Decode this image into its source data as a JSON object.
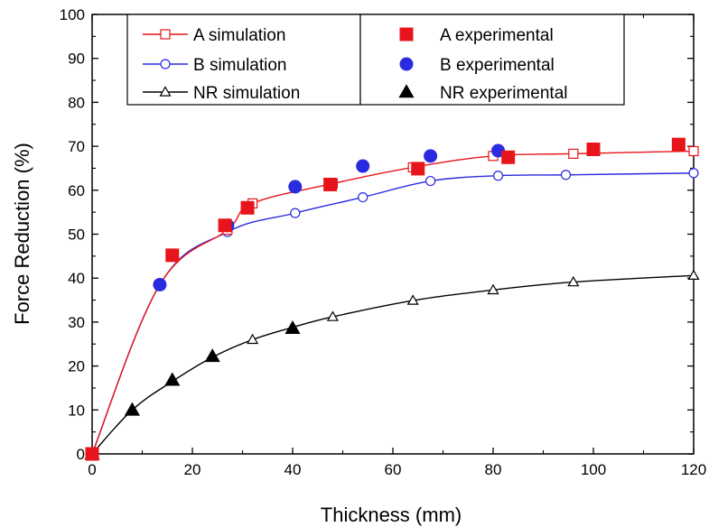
{
  "chart_data": {
    "type": "line",
    "xlabel": "Thickness (mm)",
    "ylabel": "Force Reduction (%)",
    "xlim": [
      0,
      120
    ],
    "ylim": [
      0,
      100
    ],
    "xticks": [
      "0",
      "20",
      "40",
      "60",
      "80",
      "100",
      "120"
    ],
    "yticks": [
      "0",
      "10",
      "20",
      "30",
      "40",
      "50",
      "60",
      "70",
      "80",
      "90",
      "100"
    ],
    "grid": false,
    "legend_placement": "top",
    "series": [
      {
        "name": "A simulation",
        "kind": "line-open-square",
        "color": "#e8141b",
        "x": [
          0,
          13.5,
          27,
          32,
          48,
          64,
          80,
          96,
          120
        ],
        "y": [
          0,
          38.5,
          51,
          57,
          61.5,
          65.2,
          67.8,
          68.3,
          68.9
        ]
      },
      {
        "name": "B simulation",
        "kind": "line-open-circle",
        "color": "#2a2ae0",
        "x": [
          0,
          13.5,
          27,
          40.5,
          54,
          67.5,
          81,
          94.5,
          120
        ],
        "y": [
          0,
          38.5,
          50.5,
          54.8,
          58.4,
          62.1,
          63.3,
          63.5,
          63.9
        ]
      },
      {
        "name": "NR simulation",
        "kind": "line-open-triangle",
        "color": "#000000",
        "x": [
          0,
          8,
          16,
          24,
          32,
          40,
          48,
          64,
          80,
          96,
          120
        ],
        "y": [
          0,
          10,
          16.5,
          22,
          26,
          28.8,
          31.2,
          34.9,
          37.3,
          39.1,
          40.6
        ]
      },
      {
        "name": "A experimental",
        "kind": "marker-filled-square",
        "color": "#e8141b",
        "x": [
          0,
          16,
          26.5,
          31,
          47.5,
          65,
          83,
          100,
          117
        ],
        "y": [
          0,
          45.2,
          52,
          56,
          61.3,
          64.9,
          67.5,
          69.3,
          70.4
        ]
      },
      {
        "name": "B experimental",
        "kind": "marker-filled-circle",
        "color": "#2a2ae0",
        "x": [
          0,
          13.5,
          27,
          40.5,
          54,
          67.5,
          81
        ],
        "y": [
          0,
          38.5,
          52,
          60.8,
          65.5,
          67.8,
          69
        ]
      },
      {
        "name": "NR experimental",
        "kind": "marker-filled-triangle",
        "color": "#000000",
        "x": [
          0,
          8,
          16,
          24,
          40
        ],
        "y": [
          0,
          10,
          16.8,
          22.2,
          28.6
        ]
      }
    ]
  }
}
